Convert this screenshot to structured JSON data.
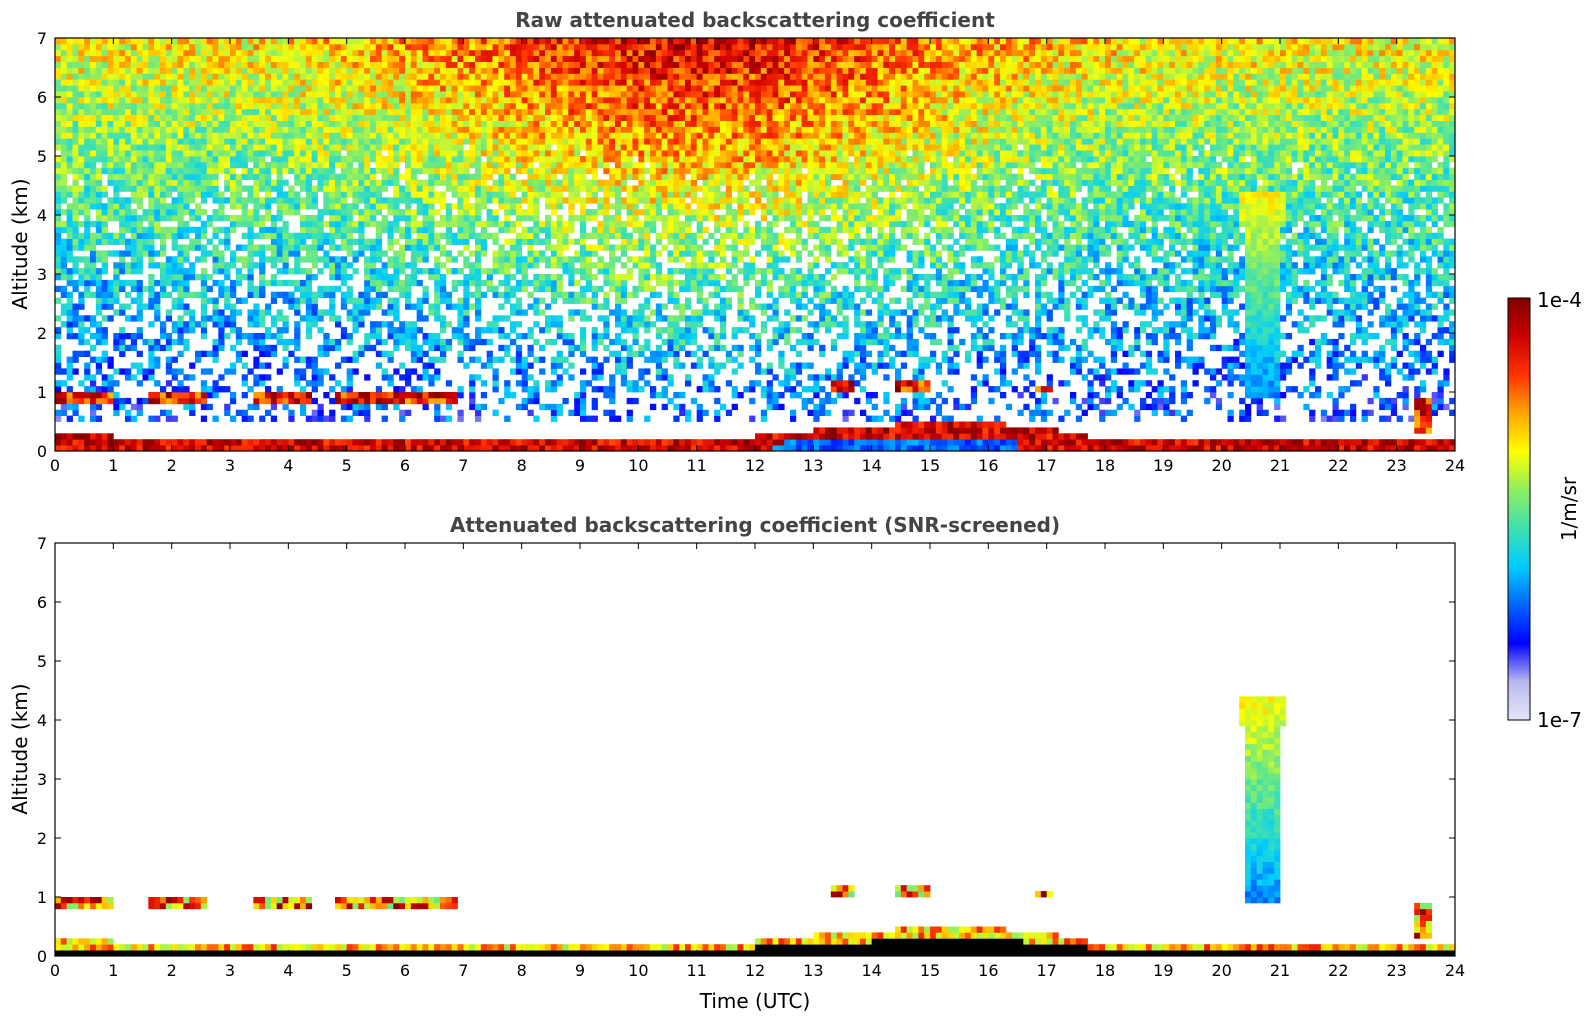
{
  "chart_data": [
    {
      "type": "heatmap",
      "title": "Raw attenuated backscattering coefficient",
      "xlabel": "",
      "ylabel": "Altitude (km)",
      "xlim": [
        0,
        24
      ],
      "ylim": [
        0,
        7
      ],
      "x_ticks": [
        "0",
        "1",
        "2",
        "3",
        "4",
        "5",
        "6",
        "7",
        "8",
        "9",
        "10",
        "11",
        "12",
        "13",
        "14",
        "15",
        "16",
        "17",
        "18",
        "19",
        "20",
        "21",
        "22",
        "23",
        "24"
      ],
      "y_ticks": [
        "0",
        "1",
        "2",
        "3",
        "4",
        "5",
        "6",
        "7"
      ],
      "color_scale": "log",
      "color_range": [
        1e-07,
        0.0001
      ],
      "features": {
        "surface_layer": {
          "x": [
            0,
            1,
            2,
            3,
            4,
            5,
            6,
            7,
            8,
            9,
            10,
            11,
            12,
            13,
            14,
            15,
            16,
            17,
            18,
            19,
            20,
            21,
            22,
            23,
            24
          ],
          "top_km": [
            0.25,
            0.25,
            0.22,
            0.22,
            0.24,
            0.24,
            0.22,
            0.2,
            0.2,
            0.2,
            0.22,
            0.22,
            0.25,
            0.35,
            0.42,
            0.5,
            0.48,
            0.38,
            0.2,
            0.18,
            0.18,
            0.18,
            0.18,
            0.2,
            0.25
          ]
        },
        "clouds": [
          {
            "x_start": 0.0,
            "x_end": 1.0,
            "base_km": 0.85,
            "top_km": 1.0
          },
          {
            "x_start": 1.6,
            "x_end": 2.6,
            "base_km": 0.85,
            "top_km": 1.0
          },
          {
            "x_start": 3.4,
            "x_end": 4.4,
            "base_km": 0.82,
            "top_km": 0.98
          },
          {
            "x_start": 4.8,
            "x_end": 6.9,
            "base_km": 0.8,
            "top_km": 1.0
          },
          {
            "x_start": 13.3,
            "x_end": 13.7,
            "base_km": 1.02,
            "top_km": 1.15
          },
          {
            "x_start": 14.4,
            "x_end": 15.0,
            "base_km": 1.05,
            "top_km": 1.22
          },
          {
            "x_start": 16.8,
            "x_end": 17.1,
            "base_km": 1.02,
            "top_km": 1.12
          },
          {
            "x_start": 23.3,
            "x_end": 23.6,
            "base_km": 0.3,
            "top_km": 0.85
          }
        ],
        "plume": {
          "x_center": 20.7,
          "base_km": 0.9,
          "top_km": 4.4
        }
      }
    },
    {
      "type": "heatmap",
      "title": "Attenuated backscattering coefficient (SNR-screened)",
      "xlabel": "Time (UTC)",
      "ylabel": "Altitude (km)",
      "xlim": [
        0,
        24
      ],
      "ylim": [
        0,
        7
      ],
      "x_ticks": [
        "0",
        "1",
        "2",
        "3",
        "4",
        "5",
        "6",
        "7",
        "8",
        "9",
        "10",
        "11",
        "12",
        "13",
        "14",
        "15",
        "16",
        "17",
        "18",
        "19",
        "20",
        "21",
        "22",
        "23",
        "24"
      ],
      "y_ticks": [
        "0",
        "1",
        "2",
        "3",
        "4",
        "5",
        "6",
        "7"
      ],
      "color_scale": "log",
      "color_range": [
        1e-07,
        0.0001
      ]
    }
  ],
  "colorbar": {
    "max_label": "1e-4",
    "min_label": "1e-7",
    "unit_label": "1/m/sr",
    "stops": [
      "#e6e6f8",
      "#b8b8ef",
      "#0000ff",
      "#0066ff",
      "#00ccff",
      "#40e0b0",
      "#90ee60",
      "#ffff00",
      "#ffa500",
      "#ff3300",
      "#cc0000",
      "#800000"
    ]
  }
}
